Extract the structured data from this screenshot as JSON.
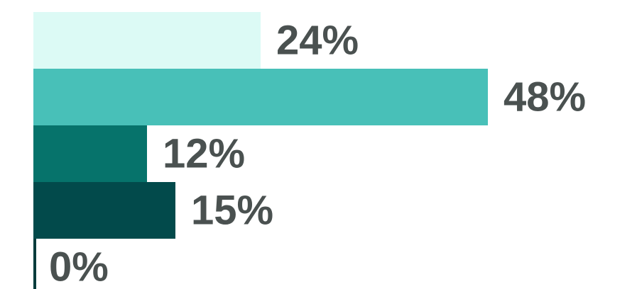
{
  "chart_data": {
    "type": "bar",
    "orientation": "horizontal",
    "categories": [
      null,
      null,
      null,
      null,
      null
    ],
    "values": [
      24,
      48,
      12,
      15,
      0
    ],
    "value_labels": [
      "24%",
      "48%",
      "12%",
      "15%",
      "0%"
    ],
    "colors": [
      "#dcfaf5",
      "#48c0b8",
      "#06736b",
      "#024a4b",
      "#013c3c"
    ]
  }
}
